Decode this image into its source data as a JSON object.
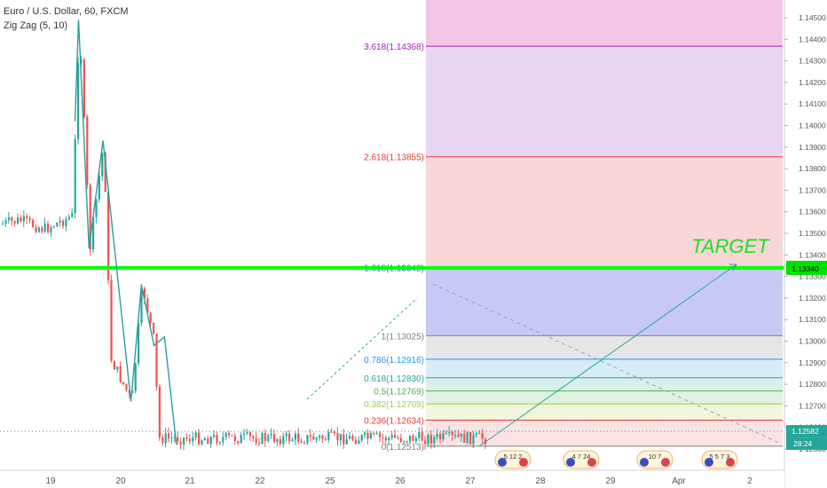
{
  "header": {
    "symbol_line": "Euro / U.S. Dollar, 60, FXCM",
    "indicator_line": "Zig Zag (5, 10)"
  },
  "price_axis": {
    "labels": [
      "1.14500",
      "1.14400",
      "1.14300",
      "1.14200",
      "1.14100",
      "1.14000",
      "1.13900",
      "1.13800",
      "1.13700",
      "1.13600",
      "1.13500",
      "1.13400",
      "1.13300",
      "1.13200",
      "1.13100",
      "1.13000",
      "1.12900",
      "1.12800",
      "1.12700",
      "1.12600",
      "1.12500"
    ],
    "current_price_label": "1.12582",
    "countdown_label": "28:24",
    "target_price_label": "1.13340"
  },
  "time_axis": {
    "labels": [
      "19",
      "20",
      "21",
      "22",
      "25",
      "26",
      "27",
      "28",
      "29",
      "Apr",
      "2"
    ]
  },
  "annotations": {
    "target_text": "TARGET",
    "event_badges": [
      "5 12 2",
      "4 7 24",
      "10 7",
      "5 5 7 3"
    ]
  },
  "chart_data": {
    "type": "line",
    "title": "Euro / U.S. Dollar, 60, FXCM",
    "indicator": "Zig Zag (5, 10)",
    "xlabel": "",
    "ylabel": "",
    "ylim": [
      1.1247,
      1.1456
    ],
    "x_ticks": [
      "19",
      "20",
      "21",
      "22",
      "25",
      "26",
      "27",
      "28",
      "29",
      "Apr",
      "2"
    ],
    "series": [
      {
        "name": "Zig Zag (5, 10)",
        "x": [
          0.35,
          0.4,
          0.55,
          0.75,
          1.15,
          1.3,
          1.48,
          1.63,
          1.8
        ],
        "values": [
          1.1402,
          1.1449,
          1.1343,
          1.1393,
          1.1272,
          1.1326,
          1.1298,
          1.1302,
          1.1252
        ]
      }
    ],
    "fib_retracement": [
      {
        "label": "3.618(1.14368)",
        "level": 1.14368,
        "color": "#9c27b0"
      },
      {
        "label": "2.618(1.13855)",
        "level": 1.13855,
        "color": "#e53935"
      },
      {
        "label": "1.618(1.13342)",
        "level": 1.13342,
        "color": "#2962ff"
      },
      {
        "label": "1(1.13025)",
        "level": 1.13025,
        "color": "#808080"
      },
      {
        "label": "0.786(1.12916)",
        "level": 1.12916,
        "color": "#2196f3"
      },
      {
        "label": "0.618(1.12830)",
        "level": 1.1283,
        "color": "#26a69a"
      },
      {
        "label": "0.5(1.12769)",
        "level": 1.12769,
        "color": "#4caf50"
      },
      {
        "label": "0.382(1.12709)",
        "level": 1.12709,
        "color": "#9ccc65"
      },
      {
        "label": "0.236(1.12634)",
        "level": 1.12634,
        "color": "#e53935"
      },
      {
        "label": "0(1.12513)",
        "level": 1.12513,
        "color": "#808080"
      }
    ],
    "target_level": 1.1334,
    "current_price": 1.12582,
    "grid": false
  }
}
